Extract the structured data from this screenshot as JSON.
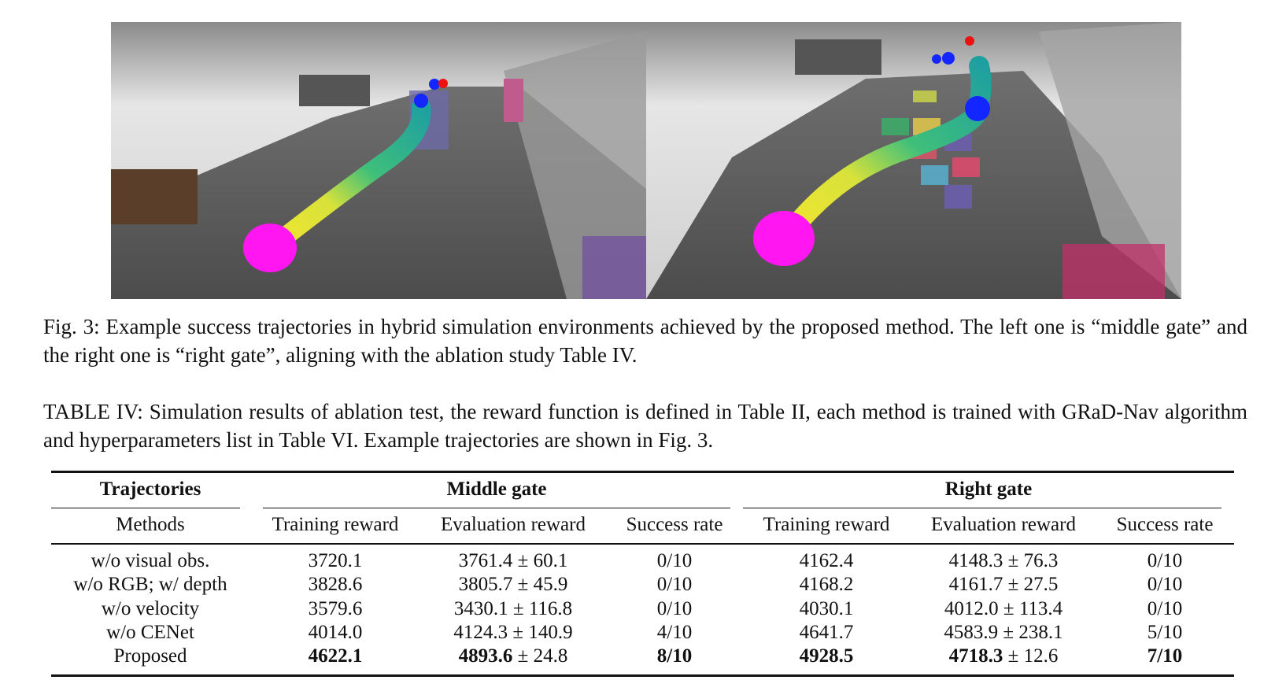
{
  "figure": {
    "caption": "Fig. 3: Example success trajectories in hybrid simulation environments achieved by the proposed method. The left one is “middle gate” and the right one is “right gate”, aligning with the ablation study Table IV."
  },
  "table": {
    "caption": "TABLE IV: Simulation results of ablation test, the reward function is defined in Table II, each method is trained with GRaD-Nav algorithm and hyperparameters list in Table VI. Example trajectories are shown in Fig. 3.",
    "header": {
      "row_label": "Trajectories",
      "groups": [
        "Middle gate",
        "Right gate"
      ],
      "methods_label": "Methods",
      "columns": [
        "Training reward",
        "Evaluation reward",
        "Success rate",
        "Training reward",
        "Evaluation reward",
        "Success rate"
      ]
    },
    "rows": [
      {
        "method": "w/o visual obs.",
        "highlight": false,
        "cells": [
          "3720.1",
          {
            "mean": "3761.4",
            "spread": "± 60.1"
          },
          "0/10",
          "4162.4",
          {
            "mean": "4148.3",
            "spread": "± 76.3"
          },
          "0/10"
        ]
      },
      {
        "method": "w/o RGB; w/ depth",
        "highlight": false,
        "cells": [
          "3828.6",
          {
            "mean": "3805.7",
            "spread": "± 45.9"
          },
          "0/10",
          "4168.2",
          {
            "mean": "4161.7",
            "spread": "± 27.5"
          },
          "0/10"
        ]
      },
      {
        "method": "w/o velocity",
        "highlight": false,
        "cells": [
          "3579.6",
          {
            "mean": "3430.1",
            "spread": "± 116.8"
          },
          "0/10",
          "4030.1",
          {
            "mean": "4012.0",
            "spread": "± 113.4"
          },
          "0/10"
        ]
      },
      {
        "method": "w/o CENet",
        "highlight": false,
        "cells": [
          "4014.0",
          {
            "mean": "4124.3",
            "spread": "± 140.9"
          },
          "4/10",
          "4641.7",
          {
            "mean": "4583.9",
            "spread": "± 238.1"
          },
          "5/10"
        ]
      },
      {
        "method": "Proposed",
        "highlight": true,
        "cells": [
          "4622.1",
          {
            "mean": "4893.6",
            "spread": "± 24.8"
          },
          "8/10",
          "4928.5",
          {
            "mean": "4718.3",
            "spread": "± 12.6"
          },
          "7/10"
        ]
      }
    ]
  }
}
